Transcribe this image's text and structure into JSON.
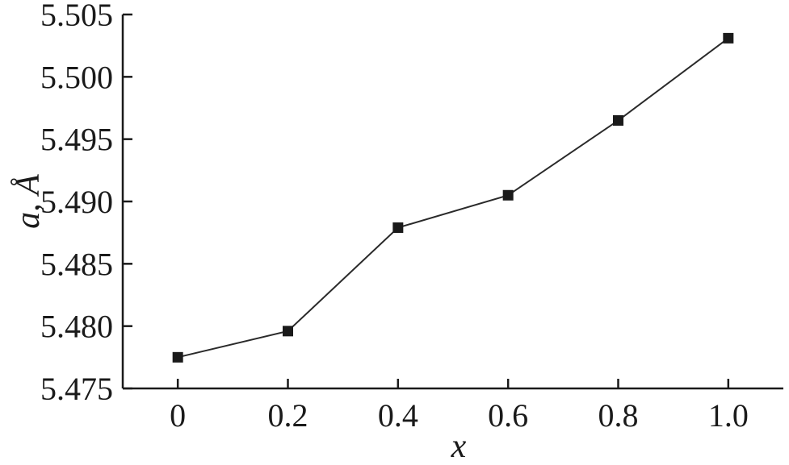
{
  "chart_data": {
    "type": "line",
    "xlabel": "x",
    "ylabel": "a, Å",
    "xlim": [
      -0.1,
      1.1
    ],
    "ylim": [
      5.475,
      5.505
    ],
    "x_ticks": [
      0,
      0.2,
      0.4,
      0.6,
      0.8,
      1.0
    ],
    "x_tick_labels": [
      "0",
      "0.2",
      "0.4",
      "0.6",
      "0.8",
      "1.0"
    ],
    "y_ticks": [
      5.475,
      5.48,
      5.485,
      5.49,
      5.495,
      5.5,
      5.505
    ],
    "y_tick_labels": [
      "5.475",
      "5.480",
      "5.485",
      "5.490",
      "5.495",
      "5.500",
      "5.505"
    ],
    "grid": false,
    "series": [
      {
        "x": [
          0,
          0.2,
          0.4,
          0.6,
          0.8,
          1.0
        ],
        "values": [
          5.4775,
          5.4796,
          5.4879,
          5.4905,
          5.4965,
          5.5031
        ],
        "marker": "square",
        "color": "#1a1a1a"
      }
    ]
  }
}
